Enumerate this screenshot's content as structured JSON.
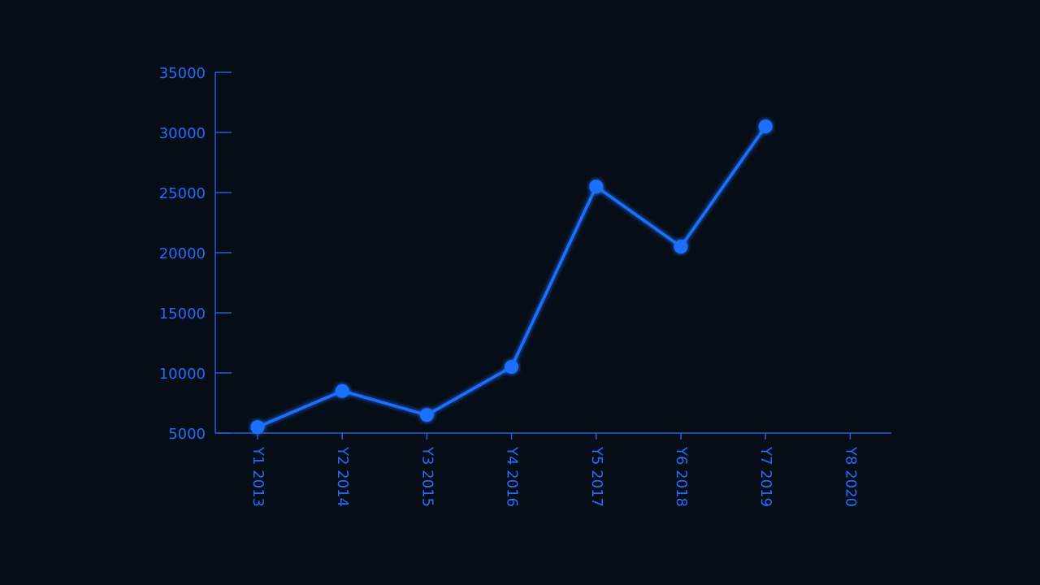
{
  "chart_data": {
    "type": "line",
    "categories": [
      "Y1 2013",
      "Y2 2014",
      "Y3 2015",
      "Y4 2016",
      "Y5 2017",
      "Y6 2018",
      "Y7 2019",
      "Y8 2020"
    ],
    "values": [
      5500,
      8500,
      6500,
      10500,
      25500,
      20500,
      30500,
      null
    ],
    "color": "#1f6fff",
    "ylim": [
      5000,
      35000
    ],
    "yticks": [
      5000,
      10000,
      15000,
      20000,
      25000,
      30000,
      35000
    ],
    "grid": false
  }
}
